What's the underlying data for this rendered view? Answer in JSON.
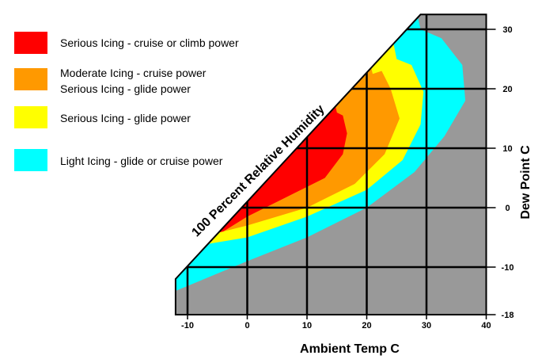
{
  "chart_data": {
    "type": "area",
    "title": "",
    "xlabel": "Ambient Temp  C",
    "ylabel": "Dew Point  C",
    "xlim": [
      -12,
      40
    ],
    "ylim": [
      -18,
      32.5
    ],
    "x_ticks": [
      -10,
      0,
      10,
      20,
      30,
      40
    ],
    "y_ticks": [
      -18,
      -10,
      0,
      10,
      20,
      30
    ],
    "grid": true,
    "legend_placement": "top-left",
    "boundary_label": "100 Percent Relative Humidity",
    "series": [
      {
        "name": "Light Icing - glide or cruise power",
        "color": "#00ffff",
        "outer_boundary": [
          [
            -12,
            -14
          ],
          [
            -6,
            -11.5
          ],
          [
            0,
            -9
          ],
          [
            10,
            -5
          ],
          [
            20,
            0
          ],
          [
            28,
            6
          ],
          [
            33,
            12
          ],
          [
            36.5,
            18
          ],
          [
            36,
            24
          ],
          [
            32.5,
            28.5
          ],
          [
            29,
            30
          ]
        ]
      },
      {
        "name": "Serious Icing - glide power",
        "color": "#ffff00",
        "outer_boundary": [
          [
            -6,
            -6
          ],
          [
            0,
            -5
          ],
          [
            10,
            -1.5
          ],
          [
            20,
            3
          ],
          [
            26,
            8
          ],
          [
            29,
            14
          ],
          [
            29.5,
            19.5
          ],
          [
            27.5,
            24
          ],
          [
            25,
            25
          ]
        ]
      },
      {
        "name": "Moderate Icing - cruise power / Serious Icing - glide power",
        "label_lines": [
          "Moderate Icing - cruise power",
          "Serious Icing - glide power"
        ],
        "color": "#ff9900",
        "outer_boundary": [
          [
            -4,
            -4
          ],
          [
            0,
            -3
          ],
          [
            10,
            0
          ],
          [
            18,
            4
          ],
          [
            23,
            9
          ],
          [
            25.5,
            15
          ],
          [
            24,
            20
          ],
          [
            22.5,
            23
          ],
          [
            21,
            22.5
          ]
        ]
      },
      {
        "name": "Serious Icing - cruise or climb power",
        "color": "#ff0000",
        "outer_boundary": [
          [
            -4,
            -4
          ],
          [
            0,
            -1.5
          ],
          [
            8,
            2.5
          ],
          [
            13,
            5
          ],
          [
            16,
            9
          ],
          [
            16.7,
            12.5
          ],
          [
            16,
            15.5
          ],
          [
            15,
            16
          ]
        ]
      }
    ],
    "background_color": "#999999"
  },
  "legend": [
    {
      "color": "#ff0000",
      "lines": [
        "Serious Icing - cruise or climb power"
      ]
    },
    {
      "color": "#ff9900",
      "lines": [
        "Moderate Icing - cruise power",
        "Serious Icing - glide power"
      ]
    },
    {
      "color": "#ffff00",
      "lines": [
        "Serious Icing - glide power"
      ]
    },
    {
      "color": "#00ffff",
      "lines": [
        "Light Icing - glide or cruise power"
      ]
    }
  ]
}
